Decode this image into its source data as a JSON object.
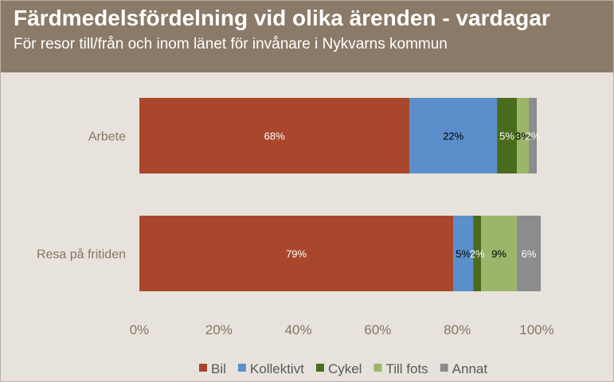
{
  "header": {
    "title": "Färdmedelsfördelning vid olika ärenden - vardagar",
    "subtitle": "För resor till/från och inom länet för invånare i Nykvarns kommun"
  },
  "chart_data": {
    "type": "bar",
    "orientation": "horizontal",
    "stacked": true,
    "categories": [
      "Arbete",
      "Resa på fritiden"
    ],
    "series": [
      {
        "name": "Bil",
        "values": [
          68,
          79
        ],
        "labels": [
          "68%",
          "79%"
        ],
        "color": "#a9472c",
        "label_color": "#ffffff"
      },
      {
        "name": "Kollektivt",
        "values": [
          22,
          5
        ],
        "labels": [
          "22%",
          "5%"
        ],
        "color": "#5b8fcb",
        "label_color": "#000000"
      },
      {
        "name": "Cykel",
        "values": [
          5,
          2
        ],
        "labels": [
          "5%",
          "2%"
        ],
        "color": "#4a6b1c",
        "label_color": "#ffffff"
      },
      {
        "name": "Till fots",
        "values": [
          3,
          9
        ],
        "labels": [
          "3%",
          "9%"
        ],
        "color": "#9bb56a",
        "label_color": "#000000"
      },
      {
        "name": "Annat",
        "values": [
          2,
          6
        ],
        "labels": [
          "2%",
          "6%"
        ],
        "color": "#8c8c8c",
        "label_color": "#ffffff"
      }
    ],
    "xlim": [
      0,
      100
    ],
    "x_ticks": [
      "0%",
      "20%",
      "40%",
      "60%",
      "80%",
      "100%"
    ],
    "legend_position": "bottom",
    "grid": false
  }
}
